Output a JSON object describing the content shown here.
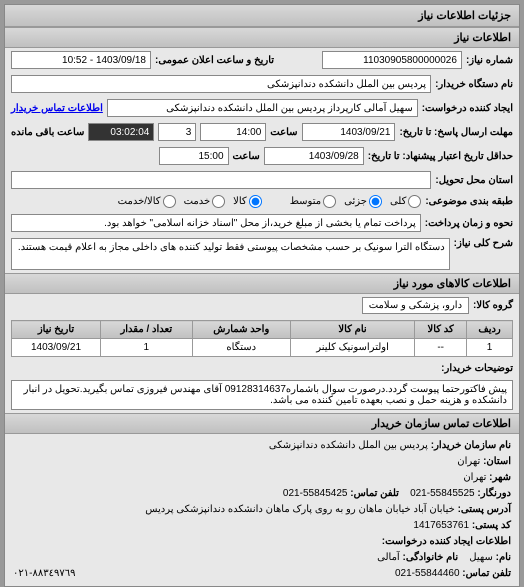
{
  "panel_title": "جزئیات اطلاعات نیاز",
  "section1_title": "اطلاعات نیاز",
  "labels": {
    "request_no": "شماره نیاز:",
    "buyer_device": "نام دستگاه خریدار:",
    "requester": "ایجاد کننده درخواست:",
    "buyer_contact_link": "اطلاعات تماس خریدار",
    "response_deadline": "مهلت ارسال پاسخ: تا تاریخ:",
    "time": "ساعت",
    "remaining_time": "ساعت باقی مانده",
    "validity": "حداقل تاریخ اعتبار پیشنهاد: تا تاریخ:",
    "delivery_place": "استان محل تحویل:",
    "subject_classification": "طبقه بندی موضوعی:",
    "opt_all": "کلی",
    "opt_goods": "کالا",
    "opt_detailed": "جزئی",
    "opt_service": "خدمت",
    "opt_medium": "متوسط",
    "opt_service2": "کالا/خدمت",
    "payment_note": "نحوه و زمان پرداخت:",
    "payment_text": "پرداخت تمام یا بخشی از مبلغ خرید،از محل \"اسناد خزانه اسلامی\" خواهد بود.",
    "need_description": "شرح کلی نیاز:",
    "announce_datetime": "تاریخ و ساعت اعلان عمومی:"
  },
  "values": {
    "request_no": "11030905800000026",
    "buyer_device": "پردیس بین الملل دانشکده دندانپزشکی",
    "requester": "سهیل آمالی کارپرداز پردیس بین الملل دانشکده دندانپزشکی",
    "response_date": "1403/09/21",
    "response_time": "14:00",
    "remaining_days": "3",
    "remaining_time": "03:02:04",
    "validity_date": "1403/09/28",
    "validity_time": "15:00",
    "delivery_place": "",
    "need_description": "دستگاه الترا سونیک بر حسب مشخصات پیوستی فقط تولید کننده های داخلی مجاز به اعلام قیمت هستند.",
    "announce_datetime": "1403/09/18 - 10:52"
  },
  "section2_title": "اطلاعات کالاهای مورد نیاز",
  "goods_group_label": "گروه کالا:",
  "goods_group": "دارو، پزشکی و سلامت",
  "table": {
    "headers": [
      "ردیف",
      "کد کالا",
      "نام کالا",
      "واحد شمارش",
      "تعداد / مقدار",
      "تاریخ نیاز"
    ],
    "rows": [
      [
        "1",
        "--",
        "اولتراسونیک کلینر",
        "دستگاه",
        "1",
        "1403/09/21"
      ]
    ]
  },
  "buyer_notes_label": "توضیحات خریدار:",
  "buyer_notes": "پیش فاکتورحتما پیوست گردد.درصورت سوال باشماره09128314637 آقای مهندس فیروزی تماس بگیرید.تحویل در انبار دانشکده و هزینه حمل و نصب بعهده تامین کننده می باشد.",
  "section3_title": "اطلاعات تماس سازمان خریدار",
  "contact": {
    "org_label": "نام سازمان خریدار:",
    "org": "پردیس بین الملل دانشکده دندانپزشکی",
    "province_label": "استان:",
    "province": "تهران",
    "city_label": "شهر:",
    "city": "تهران",
    "fax_label": "دورنگار:",
    "fax": "55845525-021",
    "phone_contact_label": "تلفن تماس:",
    "phone_contact": "55845425-021",
    "address_label": "آدرس پستی:",
    "address": "خیابان آباد خیابان ماهان رو به روی پارک ماهان دانشکده دندانپزشکی پردیس",
    "postal_label": "کد پستی:",
    "postal": "1417653761",
    "creator_info_label": "اطلاعات ایجاد کننده درخواست:",
    "name_label": "نام:",
    "name": "سهیل",
    "lastname_label": "نام خانوادگی:",
    "lastname": "آمالی",
    "phone2_label": "تلفن تماس:",
    "phone2": "55844460-021"
  },
  "corner_code": "٨٨٣٤٩٧٦٩-٠٢١"
}
